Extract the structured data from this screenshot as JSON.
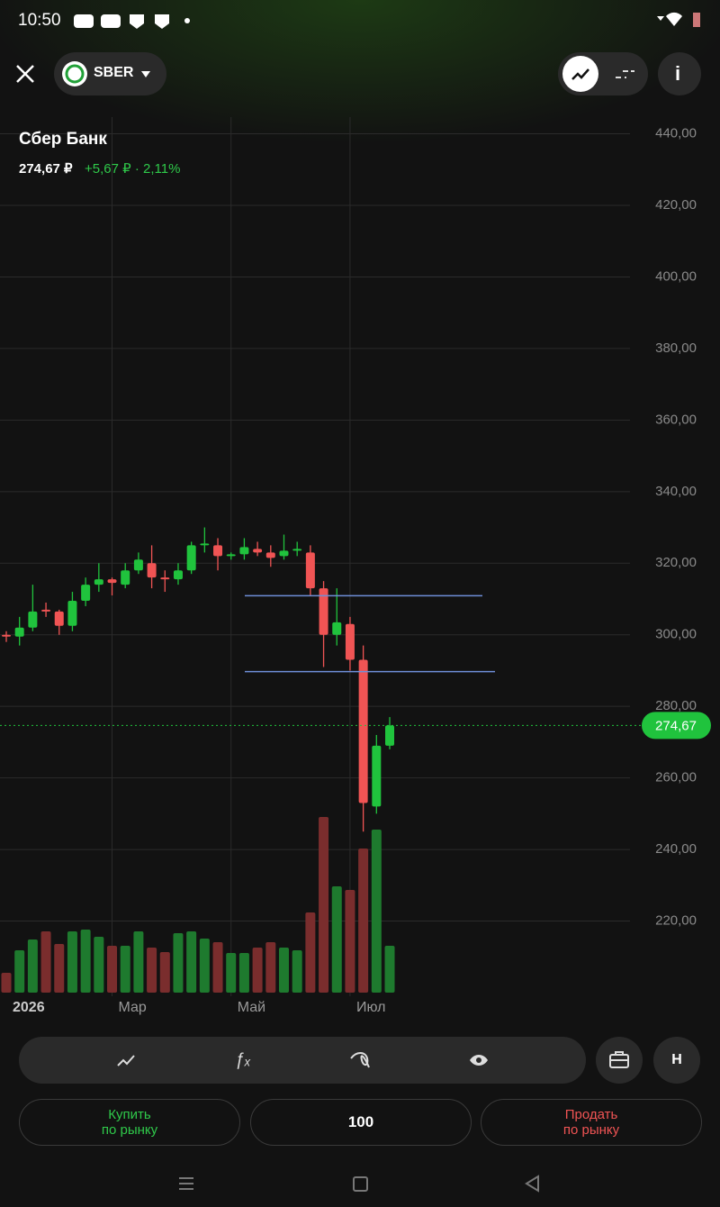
{
  "status_bar": {
    "time": "10:50"
  },
  "header": {
    "ticker": "SBER"
  },
  "instrument": {
    "name": "Сбер Банк",
    "price": "274,67 ₽",
    "change": "+5,67 ₽ · 2,11%"
  },
  "chart_data": {
    "type": "candlestick",
    "categories": [
      "2026",
      null,
      null,
      null,
      null,
      null,
      null,
      null,
      "Мар",
      null,
      null,
      null,
      null,
      null,
      null,
      null,
      null,
      "Май",
      null,
      null,
      null,
      null,
      null,
      null,
      null,
      null,
      "Июл",
      null,
      null,
      null
    ],
    "open": [
      300,
      299.5,
      302,
      307,
      306.5,
      302.5,
      309.5,
      314,
      315.5,
      314,
      318,
      320,
      316,
      315.5,
      318,
      325,
      325,
      322,
      322.5,
      324,
      323,
      322,
      323.5,
      323,
      313,
      300,
      303,
      293,
      252,
      269
    ],
    "high": [
      301,
      305,
      314,
      309,
      307,
      312,
      316,
      320,
      316,
      320,
      323,
      325,
      318,
      320,
      326,
      330,
      327,
      323,
      327,
      326,
      325,
      328,
      326,
      325,
      315,
      313,
      305,
      297,
      272,
      277
    ],
    "low": [
      298,
      297,
      301,
      305,
      300,
      301,
      308,
      312,
      311,
      313,
      317,
      313,
      312,
      314,
      317,
      323,
      318,
      321,
      321,
      322,
      319,
      321,
      322,
      311,
      291,
      297,
      290,
      245,
      250,
      268
    ],
    "close": [
      299.5,
      302,
      306.5,
      306.5,
      302.5,
      309.5,
      314,
      315.5,
      314.5,
      318,
      321,
      316,
      315.5,
      318,
      325,
      325.5,
      322,
      322.5,
      324.5,
      323,
      321.5,
      323.5,
      324,
      313,
      300,
      303.5,
      293,
      253,
      269,
      274.67
    ],
    "volume": [
      22,
      47,
      59,
      68,
      54,
      68,
      70,
      62,
      52,
      52,
      68,
      50,
      45,
      66,
      68,
      60,
      56,
      44,
      44,
      50,
      56,
      50,
      47,
      89,
      195,
      118,
      114,
      160,
      181,
      52
    ],
    "up_color": "#20c33d",
    "down_color": "#f05454",
    "volume_up_color": "#1e7a2e",
    "volume_down_color": "#7a2d2d",
    "ylim": [
      200,
      445
    ],
    "yticks": [
      {
        "value": 440,
        "label": "440,00"
      },
      {
        "value": 420,
        "label": "420,00"
      },
      {
        "value": 400,
        "label": "400,00"
      },
      {
        "value": 380,
        "label": "380,00"
      },
      {
        "value": 360,
        "label": "360,00"
      },
      {
        "value": 340,
        "label": "340,00"
      },
      {
        "value": 320,
        "label": "320,00"
      },
      {
        "value": 300,
        "label": "300,00"
      },
      {
        "value": 280,
        "label": "280,00"
      },
      {
        "value": 260,
        "label": "260,00"
      },
      {
        "value": 240,
        "label": "240,00"
      },
      {
        "value": 220,
        "label": "220,00"
      }
    ],
    "volume_lim": [
      0,
      200
    ],
    "levels": [
      310.9,
      289.7
    ],
    "level_color": "#6f8fd8",
    "price_marker": {
      "value": 274.67,
      "label": "274,67"
    },
    "grid": true
  },
  "toolbar": {
    "profile": "H"
  },
  "order": {
    "buy": [
      "Купить",
      "по рынку"
    ],
    "quantity": "100",
    "sell": [
      "Продать",
      "по рынку"
    ]
  }
}
